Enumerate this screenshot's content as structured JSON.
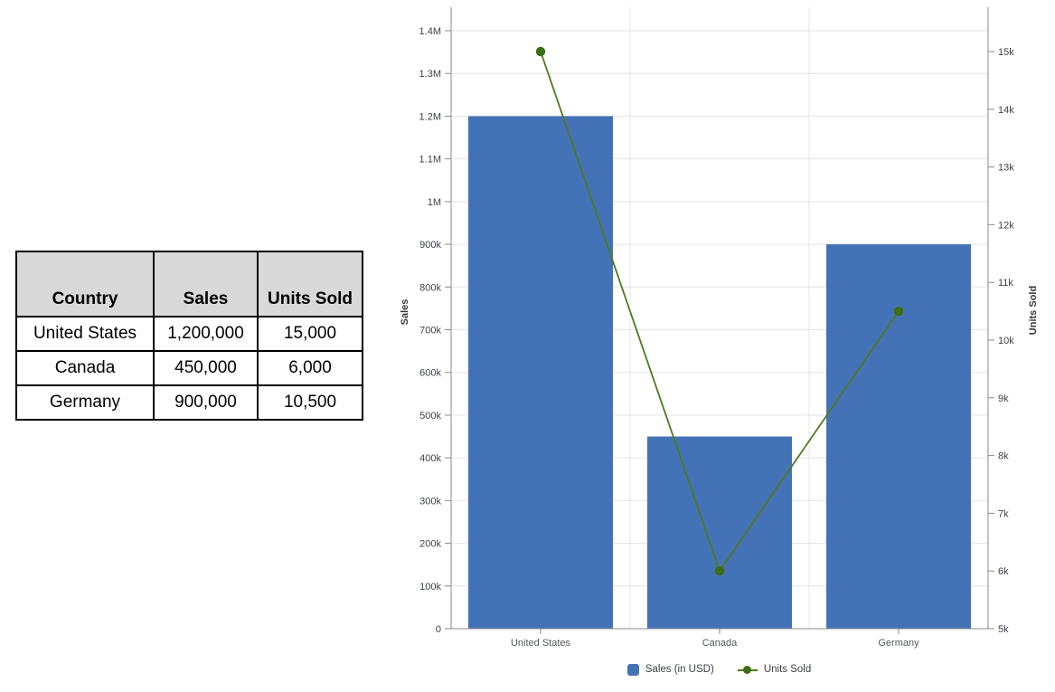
{
  "table": {
    "columns": [
      "Country",
      "Sales",
      "Units Sold"
    ],
    "rows": [
      [
        "United States",
        "1,200,000",
        "15,000"
      ],
      [
        "Canada",
        "450,000",
        "6,000"
      ],
      [
        "Germany",
        "900,000",
        "10,500"
      ]
    ]
  },
  "chart_data": {
    "type": "combo-bar-line",
    "categories": [
      "United States",
      "Canada",
      "Germany"
    ],
    "series": [
      {
        "name": "Sales (in USD)",
        "type": "bar",
        "axis": "left",
        "values": [
          1200000,
          450000,
          900000
        ],
        "color": "#4373B6"
      },
      {
        "name": "Units Sold",
        "type": "line",
        "axis": "right",
        "values": [
          15000,
          6000,
          10500
        ],
        "color": "#4F7A1E",
        "marker_color": "#3C6E15"
      }
    ],
    "left_axis": {
      "title": "Sales",
      "min": 0,
      "max": 1400000,
      "step": 100000,
      "tick_labels": [
        "0",
        "100k",
        "200k",
        "300k",
        "400k",
        "500k",
        "600k",
        "700k",
        "800k",
        "900k",
        "1M",
        "1.1M",
        "1.2M",
        "1.3M",
        "1.4M"
      ]
    },
    "right_axis": {
      "title": "Units Sold",
      "min": 5000,
      "max": 15000,
      "step": 1000,
      "tick_labels": [
        "5k",
        "6k",
        "7k",
        "8k",
        "9k",
        "10k",
        "11k",
        "12k",
        "13k",
        "14k",
        "15k"
      ]
    },
    "legend": [
      {
        "label": "Sales (in USD)",
        "swatch": "square"
      },
      {
        "label": "Units Sold",
        "swatch": "line-dot"
      }
    ],
    "grid": true,
    "legend_position": "bottom",
    "colors": {
      "gridline": "#e4e4e4",
      "axis_line": "#8a8a8a"
    }
  }
}
